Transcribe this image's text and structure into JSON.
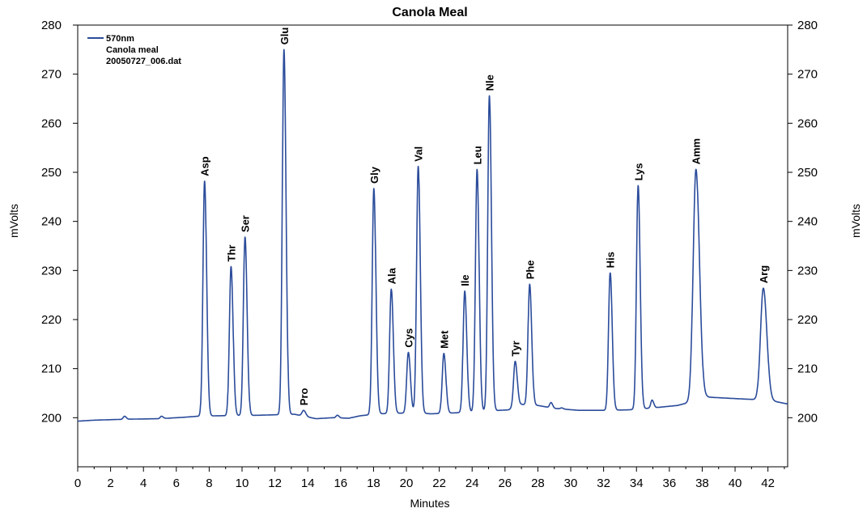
{
  "chart_data": {
    "type": "line",
    "title": "Canola Meal",
    "xlabel": "Minutes",
    "ylabel_left": "mVolts",
    "ylabel_right": "mVolts",
    "xlim": [
      0,
      43.2
    ],
    "ylim": [
      190,
      280
    ],
    "x_ticks": [
      0,
      2,
      4,
      6,
      8,
      10,
      12,
      14,
      16,
      18,
      20,
      22,
      24,
      26,
      28,
      30,
      32,
      34,
      36,
      38,
      40,
      42
    ],
    "y_ticks": [
      200,
      210,
      220,
      230,
      240,
      250,
      260,
      270,
      280
    ],
    "grid": false,
    "legend": {
      "placement": "top-left",
      "lines": [
        "570nm",
        "Canola meal",
        "20050727_006.dat"
      ]
    },
    "series_color": "#2b4c9b",
    "baseline": [
      [
        0,
        199.3
      ],
      [
        1,
        199.5
      ],
      [
        2,
        199.6
      ],
      [
        3,
        199.7
      ],
      [
        5,
        199.8
      ],
      [
        6.5,
        200.1
      ],
      [
        7.3,
        200.3
      ],
      [
        8.5,
        200.4
      ],
      [
        11,
        200.5
      ],
      [
        12,
        200.6
      ],
      [
        13.2,
        200.7
      ],
      [
        14.5,
        199.8
      ],
      [
        15.5,
        200.0
      ],
      [
        16.5,
        199.9
      ],
      [
        17.2,
        200.4
      ],
      [
        18.3,
        200.8
      ],
      [
        20.5,
        201.0
      ],
      [
        21.5,
        200.8
      ],
      [
        23,
        201.0
      ],
      [
        26.2,
        201.6
      ],
      [
        27,
        202.7
      ],
      [
        28,
        202.5
      ],
      [
        29,
        201.9
      ],
      [
        30.5,
        201.5
      ],
      [
        32,
        201.5
      ],
      [
        33.5,
        201.6
      ],
      [
        35,
        202.0
      ],
      [
        36.5,
        202.5
      ],
      [
        37.3,
        203.2
      ],
      [
        38.3,
        204.2
      ],
      [
        40,
        203.9
      ],
      [
        41.2,
        203.7
      ],
      [
        42,
        203.6
      ],
      [
        43.2,
        202.8
      ]
    ],
    "peaks": [
      {
        "name": "Asp",
        "x": 7.72,
        "y": 248.2
      },
      {
        "name": "Thr",
        "x": 9.33,
        "y": 230.8
      },
      {
        "name": "Ser",
        "x": 10.18,
        "y": 236.8
      },
      {
        "name": "Glu",
        "x": 12.55,
        "y": 275.0
      },
      {
        "name": "Pro",
        "x": 13.75,
        "y": 201.5
      },
      {
        "name": "Gly",
        "x": 18.02,
        "y": 246.7
      },
      {
        "name": "Ala",
        "x": 19.08,
        "y": 226.2
      },
      {
        "name": "Cys",
        "x": 20.12,
        "y": 213.3
      },
      {
        "name": "Val",
        "x": 20.72,
        "y": 251.2
      },
      {
        "name": "Met",
        "x": 22.28,
        "y": 213.1
      },
      {
        "name": "Ile",
        "x": 23.55,
        "y": 225.8
      },
      {
        "name": "Leu",
        "x": 24.3,
        "y": 250.6
      },
      {
        "name": "Nle",
        "x": 25.05,
        "y": 265.6
      },
      {
        "name": "Tyr",
        "x": 26.62,
        "y": 211.5
      },
      {
        "name": "Phe",
        "x": 27.5,
        "y": 227.2
      },
      {
        "name": "His",
        "x": 32.4,
        "y": 229.5
      },
      {
        "name": "Lys",
        "x": 34.1,
        "y": 247.3
      },
      {
        "name": "Amm",
        "x": 37.62,
        "y": 250.6
      },
      {
        "name": "Arg",
        "x": 41.72,
        "y": 226.4
      }
    ],
    "minor_peaks": [
      {
        "x": 2.85,
        "y": 200.3
      },
      {
        "x": 5.1,
        "y": 200.3
      },
      {
        "x": 15.8,
        "y": 200.5
      },
      {
        "x": 28.8,
        "y": 203.1
      },
      {
        "x": 29.45,
        "y": 202.0
      },
      {
        "x": 34.95,
        "y": 203.6
      }
    ]
  }
}
